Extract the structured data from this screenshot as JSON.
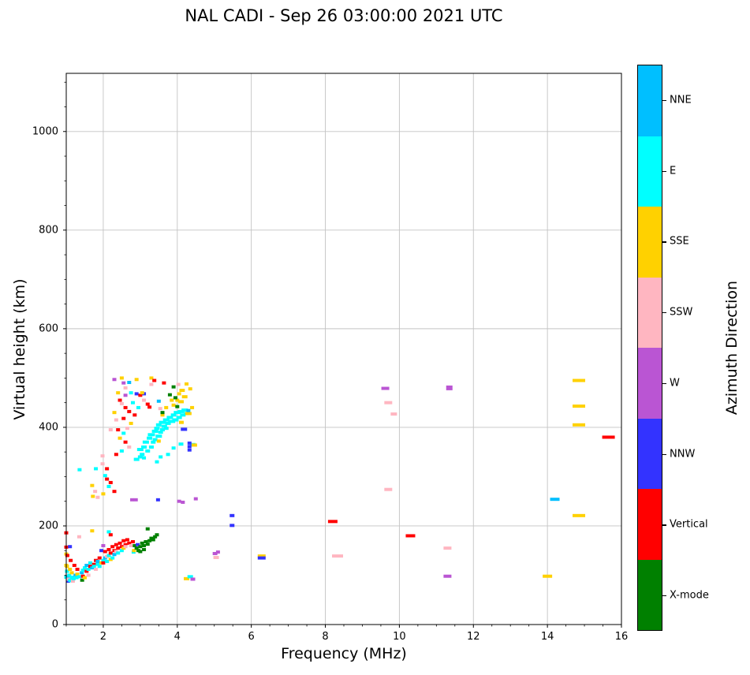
{
  "figure": {
    "background": "#ffffff"
  },
  "chart_data": {
    "type": "scatter",
    "title": "NAL CADI - Sep 26 03:00:00 2021 UTC",
    "xlabel": "Frequency (MHz)",
    "ylabel": "Virtual height (km)",
    "xlim": [
      1,
      16
    ],
    "ylim": [
      0,
      1118
    ],
    "xticks": [
      2,
      4,
      6,
      8,
      10,
      12,
      14,
      16
    ],
    "yticks": [
      0,
      200,
      400,
      600,
      800,
      1000
    ],
    "x_minor_step": 0.5,
    "y_minor_step": 50,
    "grid": true,
    "grid_color": "#c3c3c3",
    "spine_color": "#000000",
    "legend_position": "right-colorbar",
    "colorbar": {
      "label": "Azimuth Direction",
      "categories_top_to_bottom": [
        {
          "label": "NNE",
          "color": "#00BFFF"
        },
        {
          "label": "E",
          "color": "#00FFFF"
        },
        {
          "label": "SSE",
          "color": "#FFD100"
        },
        {
          "label": "SSW",
          "color": "#FFB6C1"
        },
        {
          "label": "W",
          "color": "#BA55D3"
        },
        {
          "label": "NNW",
          "color": "#3333FF"
        },
        {
          "label": "Vertical",
          "color": "#FF0000"
        },
        {
          "label": "X-mode",
          "color": "#008000"
        }
      ]
    },
    "point_format": "[freq_MHz, height_km, direction, width_px_opt, height_px_opt]",
    "points": [
      [
        1.0,
        186,
        "Vertical"
      ],
      [
        1.0,
        157,
        "Vertical"
      ],
      [
        1.0,
        143,
        "SSE"
      ],
      [
        1.0,
        120,
        "SSE"
      ],
      [
        1.0,
        96,
        "E"
      ],
      [
        1.02,
        118,
        "SSE"
      ],
      [
        1.02,
        108,
        "E"
      ],
      [
        1.03,
        140,
        "Vertical"
      ],
      [
        1.04,
        97,
        "NNE"
      ],
      [
        1.05,
        88,
        "NNW"
      ],
      [
        1.06,
        92,
        "SSW"
      ],
      [
        1.08,
        100,
        "E"
      ],
      [
        1.1,
        112,
        "SSE"
      ],
      [
        1.1,
        90,
        "E"
      ],
      [
        1.1,
        158,
        "NNW"
      ],
      [
        1.12,
        130,
        "Vertical"
      ],
      [
        1.13,
        89,
        "E"
      ],
      [
        1.15,
        96,
        "E"
      ],
      [
        1.15,
        105,
        "SSE"
      ],
      [
        1.18,
        88,
        "SSW"
      ],
      [
        1.2,
        93,
        "E"
      ],
      [
        1.22,
        120,
        "Vertical"
      ],
      [
        1.25,
        100,
        "NNE"
      ],
      [
        1.28,
        95,
        "E"
      ],
      [
        1.3,
        102,
        "SSE"
      ],
      [
        1.3,
        112,
        "Vertical"
      ],
      [
        1.35,
        178,
        "SSW"
      ],
      [
        1.35,
        97,
        "E"
      ],
      [
        1.43,
        90,
        "X-mode"
      ],
      [
        1.42,
        105,
        "NNE"
      ],
      [
        1.45,
        110,
        "E"
      ],
      [
        1.45,
        98,
        "Vertical"
      ],
      [
        1.5,
        95,
        "SSE"
      ],
      [
        1.5,
        115,
        "E"
      ],
      [
        1.55,
        108,
        "Vertical"
      ],
      [
        1.55,
        120,
        "NNE"
      ],
      [
        1.6,
        112,
        "E"
      ],
      [
        1.6,
        100,
        "SSW"
      ],
      [
        1.65,
        118,
        "Vertical"
      ],
      [
        1.65,
        125,
        "E"
      ],
      [
        1.7,
        115,
        "NNE"
      ],
      [
        1.7,
        190,
        "SSE"
      ],
      [
        1.75,
        122,
        "Vertical"
      ],
      [
        1.75,
        118,
        "E"
      ],
      [
        1.8,
        112,
        "SSW"
      ],
      [
        1.8,
        130,
        "Vertical"
      ],
      [
        1.85,
        122,
        "E"
      ],
      [
        1.85,
        128,
        "NNE"
      ],
      [
        1.9,
        135,
        "Vertical"
      ],
      [
        1.9,
        118,
        "E"
      ],
      [
        1.95,
        125,
        "SSE"
      ],
      [
        1.95,
        150,
        "NNW"
      ],
      [
        2.0,
        130,
        "E"
      ],
      [
        2.0,
        125,
        "Vertical"
      ],
      [
        2.0,
        160,
        "W"
      ],
      [
        2.05,
        135,
        "NNE"
      ],
      [
        2.05,
        148,
        "Vertical"
      ],
      [
        2.1,
        128,
        "E"
      ],
      [
        2.1,
        138,
        "SSW"
      ],
      [
        2.15,
        152,
        "Vertical"
      ],
      [
        2.15,
        140,
        "E"
      ],
      [
        2.15,
        188,
        "E"
      ],
      [
        2.2,
        145,
        "Vertical"
      ],
      [
        2.2,
        132,
        "SSE"
      ],
      [
        2.2,
        182,
        "Vertical"
      ],
      [
        2.25,
        158,
        "Vertical"
      ],
      [
        2.25,
        135,
        "E"
      ],
      [
        2.3,
        150,
        "Vertical"
      ],
      [
        2.3,
        142,
        "NNE"
      ],
      [
        2.35,
        162,
        "Vertical"
      ],
      [
        2.35,
        148,
        "SSW"
      ],
      [
        2.4,
        155,
        "Vertical"
      ],
      [
        2.4,
        145,
        "E"
      ],
      [
        2.45,
        165,
        "Vertical"
      ],
      [
        2.5,
        158,
        "Vertical"
      ],
      [
        2.5,
        150,
        "E"
      ],
      [
        2.55,
        170,
        "Vertical"
      ],
      [
        2.55,
        155,
        "SSE"
      ],
      [
        2.6,
        162,
        "Vertical"
      ],
      [
        2.6,
        158,
        "SSW"
      ],
      [
        2.65,
        172,
        "Vertical"
      ],
      [
        2.7,
        165,
        "Vertical"
      ],
      [
        2.75,
        160,
        "SSW"
      ],
      [
        2.8,
        168,
        "Vertical"
      ],
      [
        2.82,
        147,
        "E"
      ],
      [
        2.83,
        150,
        "SSE"
      ],
      [
        2.85,
        160,
        "X-mode"
      ],
      [
        2.9,
        155,
        "X-mode"
      ],
      [
        2.93,
        162,
        "NNW"
      ],
      [
        2.95,
        150,
        "X-mode"
      ],
      [
        3.0,
        158,
        "X-mode"
      ],
      [
        3.0,
        148,
        "X-mode"
      ],
      [
        3.05,
        165,
        "X-mode"
      ],
      [
        3.1,
        160,
        "X-mode"
      ],
      [
        3.1,
        152,
        "X-mode"
      ],
      [
        3.15,
        168,
        "X-mode"
      ],
      [
        3.2,
        163,
        "X-mode"
      ],
      [
        3.2,
        194,
        "X-mode"
      ],
      [
        3.25,
        170,
        "X-mode"
      ],
      [
        3.3,
        175,
        "X-mode"
      ],
      [
        3.35,
        172,
        "X-mode"
      ],
      [
        3.4,
        178,
        "X-mode"
      ],
      [
        3.45,
        182,
        "X-mode"
      ],
      [
        4.25,
        93,
        "SSE",
        7
      ],
      [
        4.35,
        97,
        "E",
        7
      ],
      [
        4.42,
        92,
        "W",
        6
      ],
      [
        1.36,
        314,
        "E"
      ],
      [
        1.98,
        342,
        "SSW"
      ],
      [
        1.98,
        326,
        "SSW"
      ],
      [
        1.7,
        282,
        "SSE"
      ],
      [
        1.78,
        270,
        "SSW"
      ],
      [
        1.85,
        258,
        "SSW"
      ],
      [
        1.72,
        260,
        "SSE"
      ],
      [
        2.1,
        295,
        "Vertical"
      ],
      [
        2.2,
        288,
        "Vertical"
      ],
      [
        2.05,
        302,
        "E"
      ],
      [
        2.3,
        270,
        "Vertical"
      ],
      [
        2.15,
        280,
        "E"
      ],
      [
        2.0,
        265,
        "SSE"
      ],
      [
        2.1,
        316,
        "Vertical"
      ],
      [
        1.8,
        316,
        "E"
      ],
      [
        2.78,
        253,
        "W"
      ],
      [
        2.88,
        253,
        "W"
      ],
      [
        3.48,
        253,
        "NNW"
      ],
      [
        4.05,
        250,
        "W"
      ],
      [
        4.15,
        248,
        "W"
      ],
      [
        4.5,
        255,
        "W"
      ],
      [
        2.3,
        497,
        "W"
      ],
      [
        2.55,
        490,
        "W"
      ],
      [
        2.5,
        500,
        "SSE"
      ],
      [
        2.7,
        491,
        "NNE"
      ],
      [
        2.9,
        497,
        "SSE"
      ],
      [
        3.3,
        500,
        "SSE"
      ],
      [
        3.38,
        495,
        "Vertical"
      ],
      [
        3.64,
        490,
        "Vertical"
      ],
      [
        2.6,
        480,
        "SSW"
      ],
      [
        2.75,
        470,
        "E"
      ],
      [
        2.6,
        465,
        "W"
      ],
      [
        2.9,
        468,
        "NNW"
      ],
      [
        3.1,
        468,
        "NNW"
      ],
      [
        2.45,
        455,
        "Vertical"
      ],
      [
        2.6,
        440,
        "Vertical"
      ],
      [
        2.7,
        432,
        "Vertical"
      ],
      [
        2.4,
        470,
        "SSE"
      ],
      [
        2.5,
        448,
        "SSW"
      ],
      [
        2.35,
        415,
        "SSW"
      ],
      [
        2.55,
        418,
        "Vertical"
      ],
      [
        2.3,
        430,
        "SSE"
      ],
      [
        2.8,
        450,
        "E"
      ],
      [
        3.0,
        465,
        "Vertical"
      ],
      [
        3.05,
        470,
        "SSE"
      ],
      [
        3.1,
        455,
        "SSW"
      ],
      [
        2.95,
        440,
        "E"
      ],
      [
        2.85,
        425,
        "Vertical"
      ],
      [
        2.75,
        408,
        "SSE"
      ],
      [
        2.65,
        398,
        "SSW"
      ],
      [
        2.4,
        395,
        "Vertical"
      ],
      [
        2.55,
        388,
        "E"
      ],
      [
        2.45,
        378,
        "SSE"
      ],
      [
        2.6,
        370,
        "Vertical"
      ],
      [
        2.7,
        360,
        "SSW"
      ],
      [
        2.5,
        352,
        "E"
      ],
      [
        2.35,
        345,
        "Vertical"
      ],
      [
        2.2,
        395,
        "SSW"
      ],
      [
        2.9,
        335,
        "E",
        7
      ],
      [
        3.0,
        340,
        "E",
        6
      ],
      [
        3.0,
        355,
        "E",
        8
      ],
      [
        3.05,
        345,
        "E",
        6
      ],
      [
        3.1,
        360,
        "E",
        7
      ],
      [
        3.1,
        338,
        "E",
        5
      ],
      [
        3.15,
        370,
        "E",
        8
      ],
      [
        3.2,
        352,
        "E",
        6
      ],
      [
        3.25,
        378,
        "E",
        7
      ],
      [
        3.3,
        360,
        "E",
        6
      ],
      [
        3.3,
        385,
        "E",
        9
      ],
      [
        3.35,
        370,
        "E",
        6
      ],
      [
        3.4,
        392,
        "E",
        8
      ],
      [
        3.4,
        375,
        "E",
        6
      ],
      [
        3.45,
        398,
        "E",
        7
      ],
      [
        3.45,
        330,
        "E",
        5
      ],
      [
        3.5,
        382,
        "E",
        8
      ],
      [
        3.5,
        405,
        "E",
        7
      ],
      [
        3.55,
        390,
        "E",
        6
      ],
      [
        3.55,
        340,
        "E",
        5
      ],
      [
        3.6,
        410,
        "E",
        9
      ],
      [
        3.6,
        395,
        "E",
        6
      ],
      [
        3.65,
        402,
        "E",
        7
      ],
      [
        3.7,
        415,
        "E",
        8
      ],
      [
        3.7,
        398,
        "E",
        6
      ],
      [
        3.75,
        408,
        "E",
        7
      ],
      [
        3.75,
        345,
        "E",
        5
      ],
      [
        3.8,
        420,
        "E",
        8
      ],
      [
        3.85,
        412,
        "E",
        9
      ],
      [
        3.9,
        425,
        "E",
        7
      ],
      [
        3.9,
        358,
        "E",
        5
      ],
      [
        3.95,
        415,
        "E",
        8
      ],
      [
        4.0,
        430,
        "E",
        9
      ],
      [
        4.05,
        420,
        "E",
        7
      ],
      [
        4.1,
        432,
        "E",
        8
      ],
      [
        4.1,
        366,
        "E",
        6
      ],
      [
        4.15,
        425,
        "E",
        7
      ],
      [
        4.2,
        435,
        "E",
        8
      ],
      [
        4.25,
        428,
        "E",
        6
      ],
      [
        4.42,
        365,
        "E",
        7
      ],
      [
        3.5,
        372,
        "SSE"
      ],
      [
        3.6,
        425,
        "SSE"
      ],
      [
        3.7,
        440,
        "SSE"
      ],
      [
        3.85,
        455,
        "SSE"
      ],
      [
        3.9,
        445,
        "SSE"
      ],
      [
        4.0,
        455,
        "SSE"
      ],
      [
        4.05,
        468,
        "SSE"
      ],
      [
        4.1,
        452,
        "SSE",
        7
      ],
      [
        4.15,
        475,
        "SSE"
      ],
      [
        4.2,
        462,
        "SSE",
        7
      ],
      [
        4.25,
        488,
        "SSE"
      ],
      [
        4.3,
        428,
        "SSE",
        8
      ],
      [
        4.35,
        478,
        "SSE"
      ],
      [
        4.46,
        364,
        "SSE",
        7
      ],
      [
        4.11,
        475,
        "SSE"
      ],
      [
        4.11,
        410,
        "SSE",
        6
      ],
      [
        4.4,
        440,
        "SSE"
      ],
      [
        3.6,
        430,
        "X-mode"
      ],
      [
        3.8,
        466,
        "X-mode"
      ],
      [
        3.9,
        482,
        "X-mode"
      ],
      [
        3.95,
        460,
        "X-mode"
      ],
      [
        4.0,
        442,
        "X-mode"
      ],
      [
        3.5,
        453,
        "NNE"
      ],
      [
        4.3,
        434,
        "NNE"
      ],
      [
        3.2,
        447,
        "Vertical"
      ],
      [
        3.25,
        441,
        "Vertical"
      ],
      [
        3.54,
        438,
        "SSW"
      ],
      [
        4.03,
        487,
        "SSW"
      ],
      [
        3.3,
        487,
        "SSW"
      ],
      [
        4.18,
        396,
        "NNW",
        8
      ],
      [
        4.33,
        368,
        "NNW",
        5
      ],
      [
        4.33,
        361,
        "NNW",
        5
      ],
      [
        4.33,
        354,
        "NNW",
        5
      ],
      [
        5.02,
        144,
        "W",
        6
      ],
      [
        5.1,
        147,
        "W",
        5
      ],
      [
        5.05,
        136,
        "SSW",
        7
      ],
      [
        5.48,
        221,
        "NNW",
        6
      ],
      [
        5.48,
        201,
        "NNW",
        6
      ],
      [
        6.28,
        139,
        "SSE",
        10
      ],
      [
        6.28,
        135,
        "NNW",
        10
      ],
      [
        8.2,
        209,
        "Vertical",
        12
      ],
      [
        8.33,
        139,
        "SSW",
        14
      ],
      [
        9.62,
        479,
        "W",
        10
      ],
      [
        9.7,
        450,
        "SSW",
        10
      ],
      [
        9.85,
        427,
        "SSW",
        8
      ],
      [
        9.7,
        274,
        "SSW",
        10
      ],
      [
        10.3,
        180,
        "Vertical",
        12
      ],
      [
        11.35,
        480,
        "W",
        8,
        6
      ],
      [
        11.3,
        155,
        "SSW",
        10
      ],
      [
        11.3,
        98,
        "W",
        10
      ],
      [
        14.0,
        98,
        "SSE",
        12
      ],
      [
        14.2,
        254,
        "NNE",
        12
      ],
      [
        14.85,
        495,
        "SSE",
        16
      ],
      [
        14.85,
        443,
        "SSE",
        16
      ],
      [
        14.85,
        405,
        "SSE",
        16
      ],
      [
        14.85,
        221,
        "SSE",
        16
      ],
      [
        15.65,
        380,
        "Vertical",
        16
      ]
    ]
  }
}
